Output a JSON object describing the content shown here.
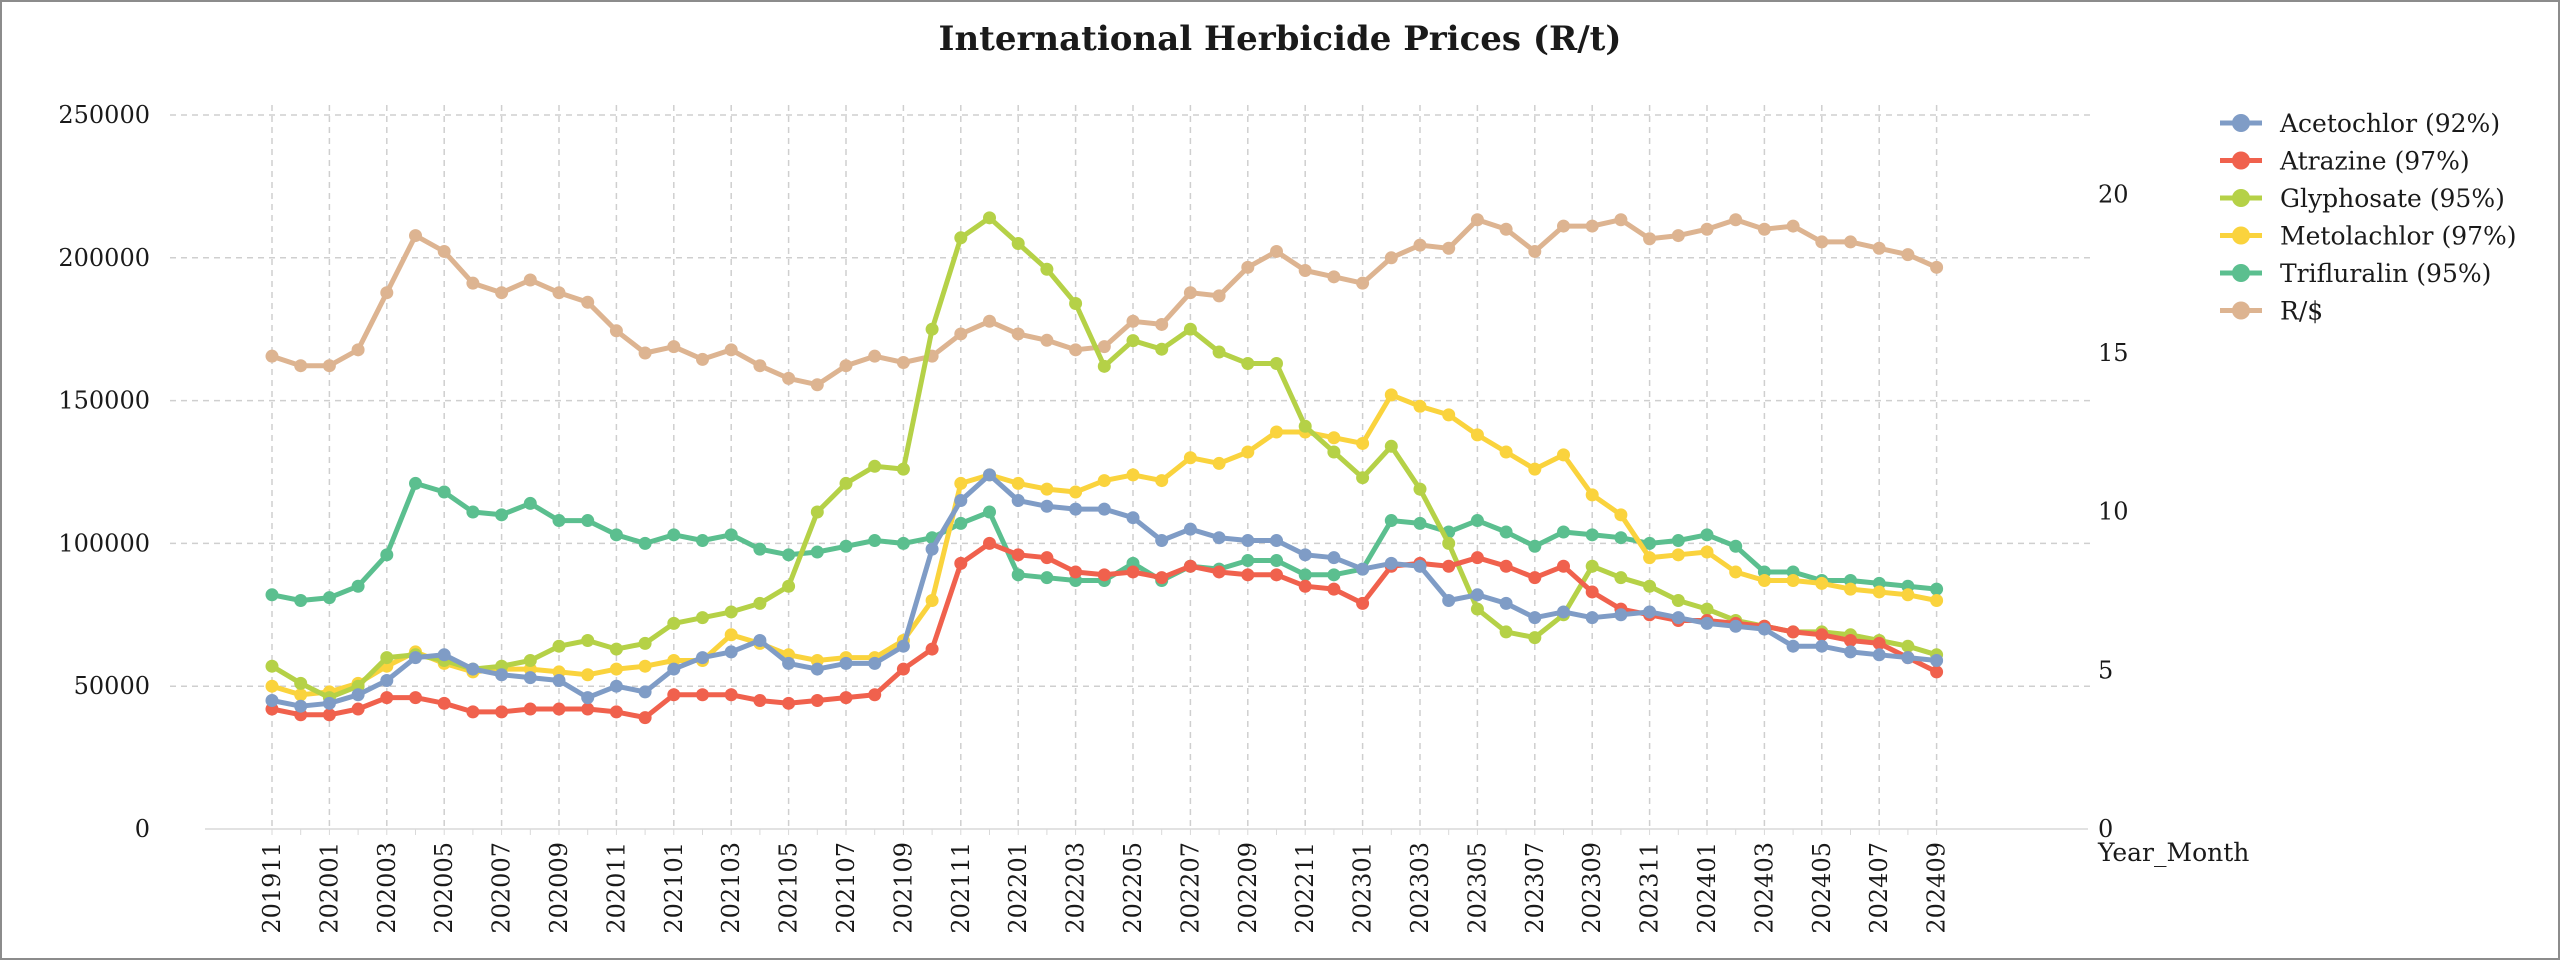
{
  "chart_data": {
    "type": "line",
    "title": "International Herbicide Prices (R/t)",
    "xlabel": "Year_Month",
    "ylabel": "",
    "ylim": [
      0,
      250000
    ],
    "y2lim": [
      0,
      22.5
    ],
    "yticks": [
      "0",
      "50000",
      "100000",
      "150000",
      "200000",
      "250000"
    ],
    "y2ticks": [
      "0",
      "5",
      "10",
      "15",
      "20"
    ],
    "grid": true,
    "legend": "right",
    "x_tick_labels": [
      "201911",
      "202001",
      "202003",
      "202005",
      "202007",
      "202009",
      "202011",
      "202101",
      "202103",
      "202105",
      "202107",
      "202109",
      "202111",
      "202201",
      "202203",
      "202205",
      "202207",
      "202209",
      "202211",
      "202301",
      "202303",
      "202305",
      "202307",
      "202309",
      "202311",
      "202401",
      "202403",
      "202405",
      "202407",
      "202409"
    ],
    "x": [
      "201911",
      "201912",
      "202001",
      "202002",
      "202003",
      "202004",
      "202005",
      "202006",
      "202007",
      "202008",
      "202009",
      "202010",
      "202011",
      "202012",
      "202101",
      "202102",
      "202103",
      "202104",
      "202105",
      "202106",
      "202107",
      "202108",
      "202109",
      "202110",
      "202111",
      "202112",
      "202201",
      "202202",
      "202203",
      "202204",
      "202205",
      "202206",
      "202207",
      "202208",
      "202209",
      "202210",
      "202211",
      "202212",
      "202301",
      "202302",
      "202303",
      "202304",
      "202305",
      "202306",
      "202307",
      "202308",
      "202309",
      "202310",
      "202311",
      "202312",
      "202401",
      "202402",
      "202403",
      "202404",
      "202405",
      "202406",
      "202407",
      "202408",
      "202409"
    ],
    "series": [
      {
        "name": "Acetochlor (92%)",
        "axis": "left",
        "color": "#7f9cc6",
        "values": [
          45000,
          43000,
          44000,
          47000,
          52000,
          60000,
          61000,
          56000,
          54000,
          53000,
          52000,
          46000,
          50000,
          48000,
          56000,
          60000,
          62000,
          66000,
          58000,
          56000,
          58000,
          58000,
          64000,
          98000,
          115000,
          124000,
          115000,
          113000,
          112000,
          112000,
          109000,
          101000,
          105000,
          102000,
          101000,
          101000,
          96000,
          95000,
          91000,
          93000,
          92000,
          80000,
          82000,
          79000,
          74000,
          76000,
          74000,
          75000,
          76000,
          74000,
          72000,
          71000,
          70000,
          64000,
          64000,
          62000,
          61000,
          60000,
          59000
        ]
      },
      {
        "name": "Atrazine (97%)",
        "axis": "left",
        "color": "#f0614d",
        "values": [
          42000,
          40000,
          40000,
          42000,
          46000,
          46000,
          44000,
          41000,
          41000,
          42000,
          42000,
          42000,
          41000,
          39000,
          47000,
          47000,
          47000,
          45000,
          44000,
          45000,
          46000,
          47000,
          56000,
          63000,
          93000,
          100000,
          96000,
          95000,
          90000,
          89000,
          90000,
          88000,
          92000,
          90000,
          89000,
          89000,
          85000,
          84000,
          79000,
          92000,
          93000,
          92000,
          95000,
          92000,
          88000,
          92000,
          83000,
          77000,
          75000,
          73000,
          73000,
          72000,
          71000,
          69000,
          68000,
          66000,
          65000,
          60000,
          55000
        ]
      },
      {
        "name": "Glyphosate (95%)",
        "axis": "left",
        "color": "#b5d147",
        "values": [
          57000,
          51000,
          46000,
          50000,
          60000,
          61000,
          59000,
          56000,
          57000,
          59000,
          64000,
          66000,
          63000,
          65000,
          72000,
          74000,
          76000,
          79000,
          85000,
          111000,
          121000,
          127000,
          126000,
          175000,
          207000,
          214000,
          205000,
          196000,
          184000,
          162000,
          171000,
          168000,
          175000,
          167000,
          163000,
          163000,
          141000,
          132000,
          123000,
          134000,
          119000,
          100000,
          77000,
          69000,
          67000,
          75000,
          92000,
          88000,
          85000,
          80000,
          77000,
          73000,
          71000,
          69000,
          69000,
          68000,
          66000,
          64000,
          61000
        ]
      },
      {
        "name": "Metolachlor (97%)",
        "axis": "left",
        "color": "#fad33d",
        "values": [
          50000,
          47000,
          48000,
          51000,
          57000,
          62000,
          58000,
          55000,
          56000,
          56000,
          55000,
          54000,
          56000,
          57000,
          59000,
          59000,
          68000,
          65000,
          61000,
          59000,
          60000,
          60000,
          66000,
          80000,
          121000,
          124000,
          121000,
          119000,
          118000,
          122000,
          124000,
          122000,
          130000,
          128000,
          132000,
          139000,
          139000,
          137000,
          135000,
          152000,
          148000,
          145000,
          138000,
          132000,
          126000,
          131000,
          117000,
          110000,
          95000,
          96000,
          97000,
          90000,
          87000,
          87000,
          86000,
          84000,
          83000,
          82000,
          80000
        ]
      },
      {
        "name": "Trifluralin (95%)",
        "axis": "left",
        "color": "#5bbf8f",
        "values": [
          82000,
          80000,
          81000,
          85000,
          96000,
          121000,
          118000,
          111000,
          110000,
          114000,
          108000,
          108000,
          103000,
          100000,
          103000,
          101000,
          103000,
          98000,
          96000,
          97000,
          99000,
          101000,
          100000,
          102000,
          107000,
          111000,
          89000,
          88000,
          87000,
          87000,
          93000,
          87000,
          92000,
          91000,
          94000,
          94000,
          89000,
          89000,
          91000,
          108000,
          107000,
          104000,
          108000,
          104000,
          99000,
          104000,
          103000,
          102000,
          100000,
          101000,
          103000,
          99000,
          90000,
          90000,
          87000,
          87000,
          86000,
          85000,
          84000
        ]
      },
      {
        "name": "R/$",
        "axis": "right",
        "color": "#ddb491",
        "values": [
          14.9,
          14.6,
          14.6,
          15.1,
          16.9,
          18.7,
          18.2,
          17.2,
          16.9,
          17.3,
          16.9,
          16.6,
          15.7,
          15.0,
          15.2,
          14.8,
          15.1,
          14.6,
          14.2,
          14.0,
          14.6,
          14.9,
          14.7,
          14.9,
          15.6,
          16.0,
          15.6,
          15.4,
          15.1,
          15.2,
          16.0,
          15.9,
          16.9,
          16.8,
          17.7,
          18.2,
          17.6,
          17.4,
          17.2,
          18.0,
          18.4,
          18.3,
          19.2,
          18.9,
          18.2,
          19.0,
          19.0,
          19.2,
          18.6,
          18.7,
          18.9,
          19.2,
          18.9,
          19.0,
          18.5,
          18.5,
          18.3,
          18.1,
          17.7
        ]
      }
    ]
  }
}
